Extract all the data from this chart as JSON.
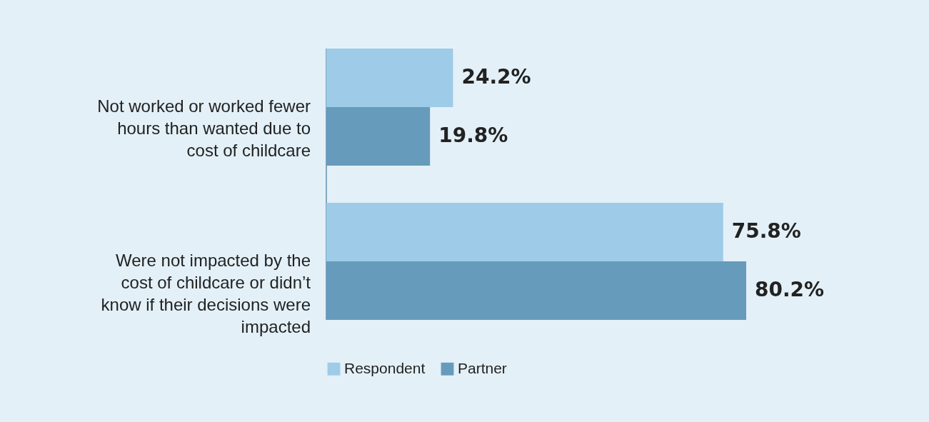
{
  "chart_data": {
    "type": "bar",
    "orientation": "horizontal",
    "categories": [
      "Not worked or worked fewer hours than wanted due to cost of childcare",
      "Were not impacted by the cost of childcare or didn’t know if their decisions were impacted"
    ],
    "series": [
      {
        "name": "Respondent",
        "color": "#9dcbe8",
        "values": [
          24.2,
          75.8
        ],
        "value_labels": [
          "24.2%",
          "75.8%"
        ]
      },
      {
        "name": "Partner",
        "color": "#679bbb",
        "values": [
          19.8,
          80.2
        ],
        "value_labels": [
          "19.8%",
          "80.2%"
        ]
      }
    ],
    "legend": "bottom"
  }
}
